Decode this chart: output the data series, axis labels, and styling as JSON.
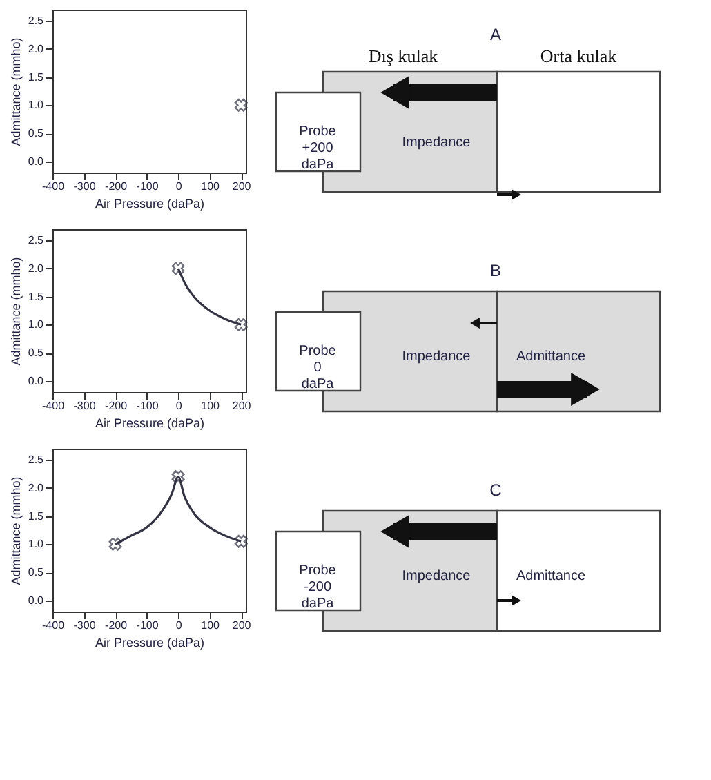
{
  "chart_data": [
    {
      "type": "scatter",
      "xlabel": "Air Pressure (daPa)",
      "ylabel": "Admittance (mmho)",
      "xlim": [
        -400,
        215
      ],
      "ylim": [
        -0.2,
        2.7
      ],
      "xticks": [
        -400,
        -300,
        -200,
        -100,
        0,
        100,
        200
      ],
      "yticks": [
        {
          "value": 0,
          "label": "0.0"
        },
        {
          "value": 0.5,
          "label": "0.5"
        },
        {
          "value": 1,
          "label": "1.0"
        },
        {
          "value": 1.5,
          "label": "1.5"
        },
        {
          "value": 2,
          "label": "2.0"
        },
        {
          "value": 2.5,
          "label": "2.5"
        }
      ],
      "grid": false,
      "series": [
        {
          "type": "scatter",
          "marker": "cross",
          "color": "#333344",
          "x": [
            200
          ],
          "values": [
            1.0
          ]
        }
      ]
    },
    {
      "type": "other",
      "title": "A",
      "annotations": [
        "Dış kulak",
        "Orta kulak",
        "Probe\n+200\ndaPa",
        "Impedance"
      ]
    },
    {
      "type": "line",
      "xlabel": "Air Pressure (daPa)",
      "ylabel": "Admittance (mmho)",
      "xlim": [
        -400,
        215
      ],
      "ylim": [
        -0.2,
        2.7
      ],
      "xticks": [
        -400,
        -300,
        -200,
        -100,
        0,
        100,
        200
      ],
      "yticks": [
        {
          "value": 0,
          "label": "0.0"
        },
        {
          "value": 0.5,
          "label": "0.5"
        },
        {
          "value": 1,
          "label": "1.0"
        },
        {
          "value": 1.5,
          "label": "1.5"
        },
        {
          "value": 2,
          "label": "2.0"
        },
        {
          "value": 2.5,
          "label": "2.5"
        }
      ],
      "grid": false,
      "series": [
        {
          "type": "line",
          "marker": "none",
          "color": "#333344",
          "x": [
            0,
            25,
            50,
            100,
            150,
            200
          ],
          "values": [
            2.0,
            1.7,
            1.5,
            1.25,
            1.1,
            1.0
          ]
        },
        {
          "type": "scatter",
          "marker": "cross",
          "color": "#333344",
          "x": [
            0,
            200
          ],
          "values": [
            2.0,
            1.0
          ]
        }
      ]
    },
    {
      "type": "other",
      "title": "B",
      "annotations": [
        "Probe\n0\ndaPa",
        "Impedance",
        "Admittance"
      ]
    },
    {
      "type": "line",
      "xlabel": "Air Pressure (daPa)",
      "ylabel": "Admittance (mmho)",
      "xlim": [
        -400,
        215
      ],
      "ylim": [
        -0.2,
        2.7
      ],
      "xticks": [
        -400,
        -300,
        -200,
        -100,
        0,
        100,
        200
      ],
      "yticks": [
        {
          "value": 0,
          "label": "0.0"
        },
        {
          "value": 0.5,
          "label": "0.5"
        },
        {
          "value": 1,
          "label": "1.0"
        },
        {
          "value": 1.5,
          "label": "1.5"
        },
        {
          "value": 2,
          "label": "2.0"
        },
        {
          "value": 2.5,
          "label": "2.5"
        }
      ],
      "grid": false,
      "series": [
        {
          "type": "line",
          "marker": "none",
          "color": "#333344",
          "x": [
            -200,
            -150,
            -100,
            -50,
            -20,
            0,
            20,
            50,
            100,
            150,
            200
          ],
          "values": [
            1.0,
            1.15,
            1.3,
            1.6,
            1.9,
            2.2,
            1.85,
            1.55,
            1.3,
            1.15,
            1.05
          ]
        },
        {
          "type": "scatter",
          "marker": "cross",
          "color": "#333344",
          "x": [
            -200,
            0,
            200
          ],
          "values": [
            1.0,
            2.2,
            1.05
          ]
        }
      ]
    },
    {
      "type": "other",
      "title": "C",
      "annotations": [
        "Probe\n-200\ndaPa",
        "Impedance",
        "Admittance"
      ]
    }
  ]
}
